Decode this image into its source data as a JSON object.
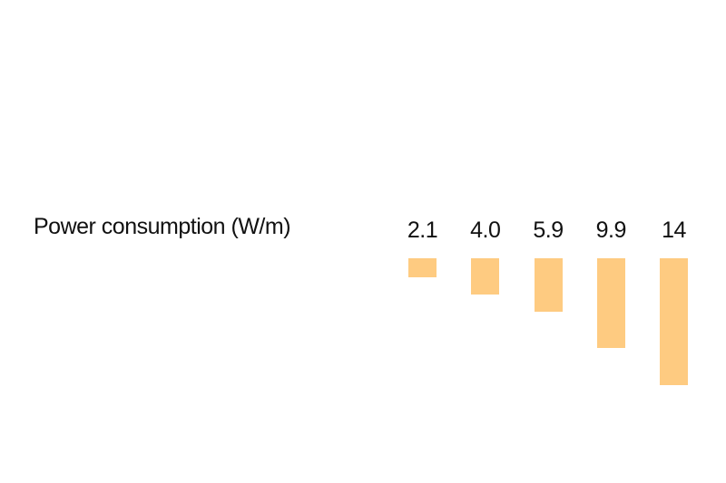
{
  "page": {
    "background_color": "#ffffff"
  },
  "chart_data": {
    "type": "bar",
    "title": "Power consumption (W/m)",
    "values": [
      2.1,
      4.0,
      5.9,
      9.9,
      14
    ],
    "value_labels": [
      "2.1",
      "4.0",
      "5.9",
      "9.9",
      "14"
    ],
    "bar_color": "#FECB81",
    "text_color": "#111111",
    "orientation": "columns hang downward from a common top edge, value labels above each bar",
    "value_range": [
      0,
      14
    ],
    "grid": "off",
    "legend": "none",
    "axes": "none"
  }
}
